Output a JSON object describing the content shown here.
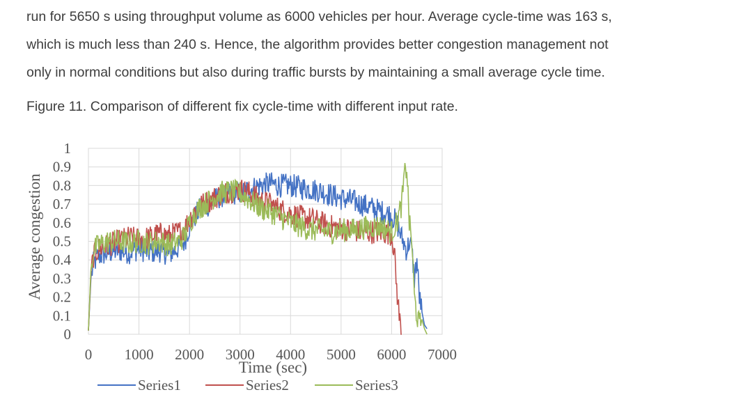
{
  "paragraph": {
    "lines": [
      "run for 5650 s using throughput volume as 6000 vehicles per hour. Average cycle-time was 163 s,",
      "which is much less than 240 s. Hence, the algorithm provides better congestion management not",
      "only in normal conditions but also during traffic bursts by maintaining a small average cycle time."
    ]
  },
  "figure": {
    "caption": "Figure 11. Comparison of different fix cycle-time with different input rate."
  },
  "chart_data": {
    "type": "line",
    "xlabel": "Time (sec)",
    "ylabel": "Average congestion",
    "xlim": [
      0,
      7000
    ],
    "ylim": [
      0,
      1
    ],
    "x_ticks": [
      "0",
      "1000",
      "2000",
      "3000",
      "4000",
      "5000",
      "6000",
      "7000"
    ],
    "y_ticks": [
      "0",
      "0.1",
      "0.2",
      "0.3",
      "0.4",
      "0.5",
      "0.6",
      "0.7",
      "0.8",
      "0.9",
      "1"
    ],
    "grid": true,
    "legend_position": "bottom",
    "series": [
      {
        "name": "Series1",
        "color": "#4472c4",
        "x": [
          0,
          50,
          100,
          200,
          400,
          600,
          800,
          1000,
          1200,
          1400,
          1600,
          1800,
          1900,
          2000,
          2100,
          2200,
          2400,
          2600,
          2800,
          3000,
          3200,
          3400,
          3600,
          3800,
          4000,
          4200,
          4400,
          4600,
          4800,
          5000,
          5200,
          5400,
          5600,
          5800,
          6000,
          6100,
          6200,
          6300,
          6350,
          6400,
          6450,
          6500,
          6550,
          6600,
          6650,
          6700
        ],
        "y": [
          0.02,
          0.3,
          0.38,
          0.42,
          0.44,
          0.45,
          0.44,
          0.46,
          0.44,
          0.45,
          0.43,
          0.47,
          0.5,
          0.58,
          0.63,
          0.67,
          0.7,
          0.74,
          0.76,
          0.76,
          0.78,
          0.8,
          0.81,
          0.8,
          0.8,
          0.79,
          0.78,
          0.77,
          0.75,
          0.73,
          0.72,
          0.7,
          0.68,
          0.66,
          0.64,
          0.6,
          0.52,
          0.45,
          0.5,
          0.45,
          0.3,
          0.4,
          0.2,
          0.12,
          0.05,
          0.03
        ]
      },
      {
        "name": "Series2",
        "color": "#c0504d",
        "x": [
          0,
          50,
          100,
          200,
          400,
          600,
          800,
          1000,
          1200,
          1400,
          1600,
          1800,
          1900,
          2000,
          2100,
          2200,
          2400,
          2600,
          2800,
          3000,
          3200,
          3400,
          3600,
          3800,
          4000,
          4200,
          4400,
          4600,
          4800,
          5000,
          5200,
          5400,
          5600,
          5800,
          6000,
          6050,
          6100,
          6150,
          6200
        ],
        "y": [
          0.02,
          0.33,
          0.42,
          0.46,
          0.48,
          0.5,
          0.52,
          0.51,
          0.52,
          0.54,
          0.53,
          0.55,
          0.57,
          0.62,
          0.66,
          0.69,
          0.72,
          0.75,
          0.77,
          0.78,
          0.76,
          0.72,
          0.7,
          0.67,
          0.65,
          0.63,
          0.62,
          0.6,
          0.58,
          0.57,
          0.56,
          0.55,
          0.55,
          0.55,
          0.54,
          0.45,
          0.25,
          0.1,
          0.0
        ]
      },
      {
        "name": "Series3",
        "color": "#9bbb59",
        "x": [
          0,
          50,
          100,
          200,
          400,
          600,
          800,
          1000,
          1200,
          1400,
          1600,
          1800,
          1900,
          2000,
          2100,
          2200,
          2400,
          2600,
          2800,
          3000,
          3200,
          3400,
          3600,
          3800,
          4000,
          4200,
          4400,
          4600,
          4800,
          5000,
          5200,
          5400,
          5600,
          5800,
          6000,
          6100,
          6200,
          6250,
          6300,
          6350,
          6400,
          6450,
          6500,
          6550,
          6600,
          6650,
          6700
        ],
        "y": [
          0.02,
          0.35,
          0.45,
          0.48,
          0.5,
          0.5,
          0.49,
          0.5,
          0.49,
          0.5,
          0.48,
          0.5,
          0.53,
          0.6,
          0.65,
          0.68,
          0.72,
          0.76,
          0.77,
          0.76,
          0.72,
          0.68,
          0.66,
          0.63,
          0.6,
          0.58,
          0.56,
          0.56,
          0.55,
          0.56,
          0.56,
          0.57,
          0.58,
          0.58,
          0.55,
          0.6,
          0.7,
          0.85,
          0.9,
          0.6,
          0.5,
          0.2,
          0.1,
          0.05,
          0.08,
          0.03,
          0.0
        ]
      }
    ]
  }
}
